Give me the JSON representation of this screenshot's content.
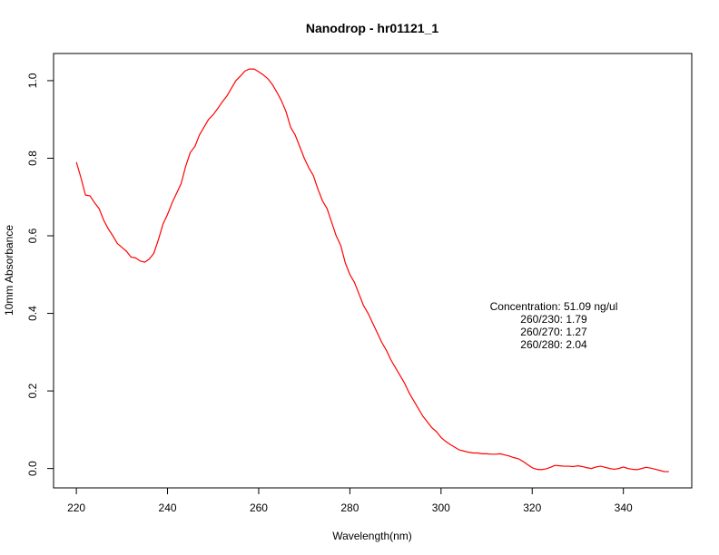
{
  "chart_data": {
    "type": "line",
    "title": "Nanodrop - hr01121_1",
    "xlabel": "Wavelength(nm)",
    "ylabel": "10mm Absorbance",
    "xlim": [
      215,
      355
    ],
    "ylim": [
      -0.05,
      1.07
    ],
    "x_ticks": [
      220,
      240,
      260,
      280,
      300,
      320,
      340
    ],
    "y_ticks": [
      0.0,
      0.2,
      0.4,
      0.6,
      0.8,
      1.0
    ],
    "x_tick_labels": [
      "220",
      "240",
      "260",
      "280",
      "300",
      "320",
      "340"
    ],
    "y_tick_labels": [
      "0.0",
      "0.2",
      "0.4",
      "0.6",
      "0.8",
      "1.0"
    ],
    "grid": false,
    "legend": "none",
    "series": [
      {
        "color": "#ff0000",
        "x": [
          220,
          221,
          222,
          223,
          224,
          225,
          226,
          227,
          228,
          229,
          230,
          231,
          232,
          233,
          234,
          235,
          236,
          237,
          238,
          239,
          240,
          241,
          242,
          243,
          244,
          245,
          246,
          247,
          248,
          249,
          250,
          251,
          252,
          253,
          254,
          255,
          256,
          257,
          258,
          259,
          260,
          261,
          262,
          263,
          264,
          265,
          266,
          267,
          268,
          269,
          270,
          271,
          272,
          273,
          274,
          275,
          276,
          277,
          278,
          279,
          280,
          281,
          282,
          283,
          284,
          285,
          286,
          287,
          288,
          289,
          290,
          291,
          292,
          293,
          294,
          295,
          296,
          297,
          298,
          299,
          300,
          301,
          302,
          303,
          304,
          305,
          306,
          307,
          308,
          309,
          310,
          311,
          312,
          313,
          314,
          315,
          316,
          317,
          318,
          319,
          320,
          321,
          322,
          323,
          324,
          325,
          326,
          327,
          328,
          329,
          330,
          331,
          332,
          333,
          334,
          335,
          336,
          337,
          338,
          339,
          340,
          341,
          342,
          343,
          344,
          345,
          346,
          347,
          348,
          349,
          350
        ],
        "y": [
          0.79,
          0.75,
          0.705,
          0.703,
          0.685,
          0.67,
          0.64,
          0.618,
          0.6,
          0.58,
          0.57,
          0.56,
          0.545,
          0.543,
          0.535,
          0.532,
          0.54,
          0.555,
          0.59,
          0.63,
          0.655,
          0.685,
          0.71,
          0.735,
          0.78,
          0.815,
          0.83,
          0.86,
          0.88,
          0.9,
          0.912,
          0.928,
          0.945,
          0.96,
          0.98,
          1.0,
          1.012,
          1.025,
          1.03,
          1.03,
          1.023,
          1.015,
          1.005,
          0.99,
          0.97,
          0.948,
          0.92,
          0.88,
          0.86,
          0.83,
          0.8,
          0.775,
          0.755,
          0.72,
          0.69,
          0.67,
          0.635,
          0.6,
          0.575,
          0.53,
          0.5,
          0.48,
          0.45,
          0.42,
          0.4,
          0.375,
          0.35,
          0.325,
          0.305,
          0.28,
          0.26,
          0.24,
          0.22,
          0.195,
          0.175,
          0.155,
          0.135,
          0.12,
          0.105,
          0.095,
          0.08,
          0.07,
          0.062,
          0.055,
          0.048,
          0.045,
          0.042,
          0.04,
          0.04,
          0.038,
          0.038,
          0.037,
          0.037,
          0.038,
          0.035,
          0.032,
          0.028,
          0.025,
          0.018,
          0.01,
          0.002,
          -0.002,
          -0.003,
          -0.001,
          0.003,
          0.008,
          0.007,
          0.006,
          0.006,
          0.005,
          0.007,
          0.005,
          0.002,
          0.0,
          0.004,
          0.006,
          0.003,
          0.0,
          -0.002,
          0.0,
          0.004,
          0.0,
          -0.002,
          -0.003,
          0.0,
          0.003,
          0.001,
          -0.002,
          -0.005,
          -0.008,
          -0.008
        ]
      }
    ],
    "annotations": [
      "Concentration: 51.09 ng/ul",
      "260/230: 1.79",
      "260/270: 1.27",
      "260/280: 2.04"
    ]
  }
}
